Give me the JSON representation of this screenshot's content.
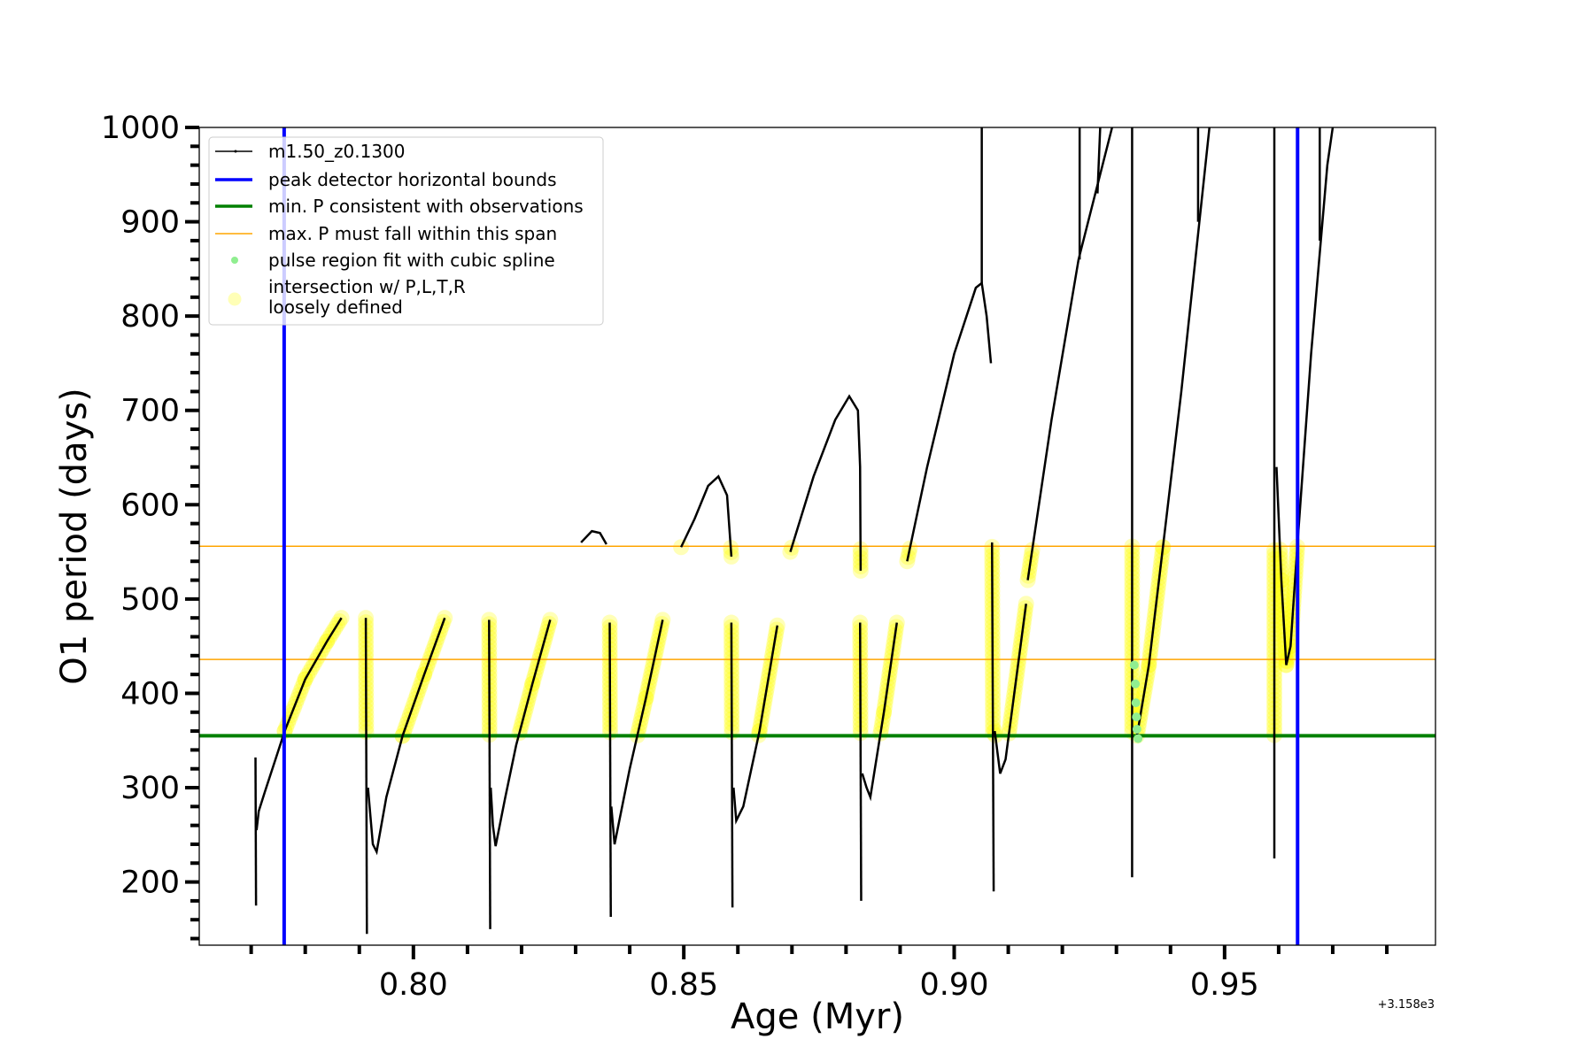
{
  "chart_data": {
    "type": "line",
    "xlabel": "Age (Myr)",
    "ylabel": "O1 period (days)",
    "x_offset_label": "+3.158e3",
    "xlim": [
      0.7604,
      0.989
    ],
    "ylim": [
      133,
      1000
    ],
    "xticks": [
      0.8,
      0.85,
      0.9,
      0.95
    ],
    "xtick_labels": [
      "0.80",
      "0.85",
      "0.90",
      "0.95"
    ],
    "yticks": [
      200,
      300,
      400,
      500,
      600,
      700,
      800,
      900,
      1000
    ],
    "ytick_labels": [
      "200",
      "300",
      "400",
      "500",
      "600",
      "700",
      "800",
      "900",
      "1000"
    ],
    "grid": false,
    "legend_position": "top-left",
    "legend": [
      {
        "label": "m1.50_z0.1300",
        "kind": "line-dot",
        "color": "#000000"
      },
      {
        "label": "peak detector horizontal bounds",
        "kind": "thick-line",
        "color": "#0000ff"
      },
      {
        "label": "min. P consistent with observations",
        "kind": "thick-line",
        "color": "#008000"
      },
      {
        "label": "max. P must fall within this span",
        "kind": "thin-line",
        "color": "#ffa500"
      },
      {
        "label": "pulse region fit with cubic spline",
        "kind": "small-dot",
        "color": "#90ee90"
      },
      {
        "label": "intersection w/ P,L,T,R",
        "label2": "loosely defined",
        "kind": "big-dot",
        "color": "#ffff99"
      }
    ],
    "vlines": {
      "color": "#0000ff",
      "x": [
        0.7761,
        0.9635
      ]
    },
    "hline_min": {
      "color": "#008000",
      "y": 355
    },
    "hlines_max": {
      "color": "#ffa500",
      "y": [
        436,
        556
      ]
    },
    "series_name": "m1.50_z0.1300",
    "segments": [
      [
        [
          0.7708,
          332
        ],
        [
          0.7709,
          175
        ]
      ],
      [
        [
          0.771,
          255
        ],
        [
          0.7714,
          275
        ],
        [
          0.7725,
          295
        ],
        [
          0.7745,
          330
        ],
        [
          0.7762,
          360
        ],
        [
          0.78,
          415
        ],
        [
          0.784,
          455
        ],
        [
          0.7867,
          480
        ]
      ],
      [
        [
          0.7912,
          480
        ],
        [
          0.7914,
          145
        ]
      ],
      [
        [
          0.7916,
          300
        ],
        [
          0.7925,
          240
        ],
        [
          0.7932,
          232
        ],
        [
          0.795,
          290
        ],
        [
          0.798,
          355
        ],
        [
          0.802,
          420
        ],
        [
          0.8058,
          480
        ]
      ],
      [
        [
          0.814,
          478
        ],
        [
          0.8142,
          150
        ]
      ],
      [
        [
          0.8143,
          300
        ],
        [
          0.8147,
          260
        ],
        [
          0.8152,
          238
        ],
        [
          0.817,
          290
        ],
        [
          0.819,
          345
        ],
        [
          0.822,
          410
        ],
        [
          0.8253,
          478
        ]
      ],
      [
        [
          0.831,
          560
        ],
        [
          0.833,
          572
        ],
        [
          0.8345,
          570
        ],
        [
          0.8357,
          558
        ]
      ],
      [
        [
          0.8363,
          475
        ],
        [
          0.8365,
          163
        ]
      ],
      [
        [
          0.8366,
          280
        ],
        [
          0.8372,
          240
        ],
        [
          0.84,
          320
        ],
        [
          0.843,
          395
        ],
        [
          0.8461,
          478
        ]
      ],
      [
        [
          0.8495,
          555
        ],
        [
          0.852,
          585
        ],
        [
          0.8545,
          620
        ],
        [
          0.8564,
          630
        ],
        [
          0.858,
          610
        ],
        [
          0.8588,
          545
        ]
      ],
      [
        [
          0.8588,
          475
        ],
        [
          0.859,
          173
        ]
      ],
      [
        [
          0.8592,
          300
        ],
        [
          0.8597,
          265
        ],
        [
          0.861,
          280
        ],
        [
          0.864,
          360
        ],
        [
          0.8673,
          472
        ]
      ],
      [
        [
          0.8697,
          550
        ],
        [
          0.874,
          630
        ],
        [
          0.878,
          690
        ],
        [
          0.8806,
          715
        ],
        [
          0.8822,
          700
        ],
        [
          0.8826,
          640
        ],
        [
          0.8827,
          530
        ]
      ],
      [
        [
          0.8826,
          475
        ],
        [
          0.8828,
          180
        ]
      ],
      [
        [
          0.883,
          315
        ],
        [
          0.8838,
          300
        ],
        [
          0.8845,
          290
        ],
        [
          0.887,
          380
        ],
        [
          0.8894,
          475
        ]
      ],
      [
        [
          0.8913,
          540
        ],
        [
          0.895,
          640
        ],
        [
          0.9,
          760
        ],
        [
          0.904,
          830
        ],
        [
          0.9051,
          835
        ],
        [
          0.906,
          800
        ],
        [
          0.9068,
          750
        ]
      ],
      [
        [
          0.9051,
          835
        ],
        [
          0.9051,
          1000
        ]
      ],
      [
        [
          0.907,
          560
        ],
        [
          0.9073,
          190
        ]
      ],
      [
        [
          0.9075,
          360
        ],
        [
          0.9085,
          315
        ],
        [
          0.9095,
          330
        ],
        [
          0.9133,
          495
        ]
      ],
      [
        [
          0.9136,
          520
        ],
        [
          0.918,
          690
        ],
        [
          0.923,
          860
        ],
        [
          0.9292,
          1000
        ]
      ],
      [
        [
          0.9232,
          860
        ],
        [
          0.9232,
          1000
        ]
      ],
      [
        [
          0.9265,
          930
        ],
        [
          0.927,
          1000
        ]
      ],
      [
        [
          0.9329,
          1000
        ],
        [
          0.9329,
          205
        ]
      ],
      [
        [
          0.9338,
          355
        ],
        [
          0.936,
          430
        ],
        [
          0.9386,
          555
        ],
        [
          0.942,
          720
        ],
        [
          0.9472,
          1000
        ]
      ],
      [
        [
          0.9451,
          900
        ],
        [
          0.9451,
          1000
        ]
      ],
      [
        [
          0.9592,
          1000
        ],
        [
          0.9592,
          225
        ]
      ],
      [
        [
          0.9596,
          640
        ],
        [
          0.9605,
          520
        ],
        [
          0.9614,
          430
        ],
        [
          0.9622,
          450
        ],
        [
          0.9635,
          560
        ],
        [
          0.966,
          760
        ],
        [
          0.969,
          960
        ],
        [
          0.97,
          1000
        ]
      ],
      [
        [
          0.9676,
          880
        ],
        [
          0.9676,
          1000
        ]
      ]
    ],
    "spline_points": [
      [
        0.9333,
        430
      ],
      [
        0.9335,
        410
      ],
      [
        0.9336,
        390
      ],
      [
        0.9337,
        375
      ],
      [
        0.9338,
        362
      ],
      [
        0.934,
        352
      ]
    ]
  }
}
